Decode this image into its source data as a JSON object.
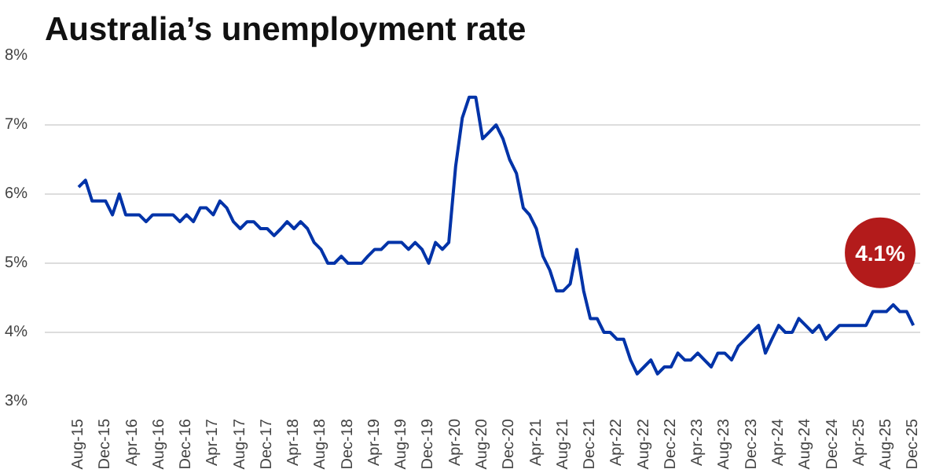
{
  "chart_data": {
    "type": "line",
    "title": "Australia’s unemployment rate",
    "x": [
      "2015-08",
      "2015-09",
      "2015-10",
      "2015-11",
      "2015-12",
      "2016-01",
      "2016-02",
      "2016-03",
      "2016-04",
      "2016-05",
      "2016-06",
      "2016-07",
      "2016-08",
      "2016-09",
      "2016-10",
      "2016-11",
      "2016-12",
      "2017-01",
      "2017-02",
      "2017-03",
      "2017-04",
      "2017-05",
      "2017-06",
      "2017-07",
      "2017-08",
      "2017-09",
      "2017-10",
      "2017-11",
      "2017-12",
      "2018-01",
      "2018-02",
      "2018-03",
      "2018-04",
      "2018-05",
      "2018-06",
      "2018-07",
      "2018-08",
      "2018-09",
      "2018-10",
      "2018-11",
      "2018-12",
      "2019-01",
      "2019-02",
      "2019-03",
      "2019-04",
      "2019-05",
      "2019-06",
      "2019-07",
      "2019-08",
      "2019-09",
      "2019-10",
      "2019-11",
      "2019-12",
      "2020-01",
      "2020-02",
      "2020-03",
      "2020-04",
      "2020-05",
      "2020-06",
      "2020-07",
      "2020-08",
      "2020-09",
      "2020-10",
      "2020-11",
      "2020-12",
      "2021-01",
      "2021-02",
      "2021-03",
      "2021-04",
      "2021-05",
      "2021-06",
      "2021-07",
      "2021-08",
      "2021-09",
      "2021-10",
      "2021-11",
      "2021-12",
      "2022-01",
      "2022-02",
      "2022-03",
      "2022-04",
      "2022-05",
      "2022-06",
      "2022-07",
      "2022-08",
      "2022-09",
      "2022-10",
      "2022-11",
      "2022-12",
      "2023-01",
      "2023-02",
      "2023-03",
      "2023-04",
      "2023-05",
      "2023-06",
      "2023-07",
      "2023-08",
      "2023-09",
      "2023-10",
      "2023-11",
      "2023-12",
      "2024-01",
      "2024-02",
      "2024-03",
      "2024-04",
      "2024-05",
      "2024-06",
      "2024-07",
      "2024-08",
      "2024-09",
      "2024-10",
      "2024-11",
      "2024-12",
      "2025-01",
      "2025-02",
      "2025-03",
      "2025-04",
      "2025-05",
      "2025-06",
      "2025-07",
      "2025-08",
      "2025-09",
      "2025-10",
      "2025-11",
      "2025-12"
    ],
    "series": [
      {
        "color": "#0033a8",
        "values": [
          6.1,
          6.2,
          5.9,
          5.9,
          5.9,
          5.7,
          6.0,
          5.7,
          5.7,
          5.7,
          5.6,
          5.7,
          5.7,
          5.7,
          5.7,
          5.6,
          5.7,
          5.6,
          5.8,
          5.8,
          5.7,
          5.9,
          5.8,
          5.6,
          5.5,
          5.6,
          5.6,
          5.5,
          5.5,
          5.4,
          5.5,
          5.6,
          5.5,
          5.6,
          5.5,
          5.3,
          5.2,
          5.0,
          5.0,
          5.1,
          5.0,
          5.0,
          5.0,
          5.1,
          5.2,
          5.2,
          5.3,
          5.3,
          5.3,
          5.2,
          5.3,
          5.2,
          5.0,
          5.3,
          5.2,
          5.3,
          6.4,
          7.1,
          7.4,
          7.4,
          6.8,
          6.9,
          7.0,
          6.8,
          6.5,
          6.3,
          5.8,
          5.7,
          5.5,
          5.1,
          4.9,
          4.6,
          4.6,
          4.7,
          5.2,
          4.6,
          4.2,
          4.2,
          4.0,
          4.0,
          3.9,
          3.9,
          3.6,
          3.4,
          3.5,
          3.6,
          3.4,
          3.5,
          3.5,
          3.7,
          3.6,
          3.6,
          3.7,
          3.6,
          3.5,
          3.7,
          3.7,
          3.6,
          3.8,
          3.9,
          4.0,
          4.1,
          3.7,
          3.9,
          4.1,
          4.0,
          4.0,
          4.2,
          4.1,
          4.0,
          4.1,
          3.9,
          4.0,
          4.1,
          4.1,
          4.1,
          4.1,
          4.1,
          4.3,
          4.3,
          4.3,
          4.4,
          4.3,
          4.3,
          4.1
        ]
      }
    ],
    "xlim": [
      "2015-03",
      "2026-01"
    ],
    "xticks": [
      {
        "value": "2015-08",
        "label": "Aug-15"
      },
      {
        "value": "2015-12",
        "label": "Dec-15"
      },
      {
        "value": "2016-04",
        "label": "Apr-16"
      },
      {
        "value": "2016-08",
        "label": "Aug-16"
      },
      {
        "value": "2016-12",
        "label": "Dec-16"
      },
      {
        "value": "2017-04",
        "label": "Apr-17"
      },
      {
        "value": "2017-08",
        "label": "Aug-17"
      },
      {
        "value": "2017-12",
        "label": "Dec-17"
      },
      {
        "value": "2018-04",
        "label": "Apr-18"
      },
      {
        "value": "2018-08",
        "label": "Aug-18"
      },
      {
        "value": "2018-12",
        "label": "Dec-18"
      },
      {
        "value": "2019-04",
        "label": "Apr-19"
      },
      {
        "value": "2019-08",
        "label": "Aug-19"
      },
      {
        "value": "2019-12",
        "label": "Dec-19"
      },
      {
        "value": "2020-04",
        "label": "Apr-20"
      },
      {
        "value": "2020-08",
        "label": "Aug-20"
      },
      {
        "value": "2020-12",
        "label": "Dec-20"
      },
      {
        "value": "2021-04",
        "label": "Apr-21"
      },
      {
        "value": "2021-08",
        "label": "Aug-21"
      },
      {
        "value": "2021-12",
        "label": "Dec-21"
      },
      {
        "value": "2022-04",
        "label": "Apr-22"
      },
      {
        "value": "2022-08",
        "label": "Aug-22"
      },
      {
        "value": "2022-12",
        "label": "Dec-22"
      },
      {
        "value": "2023-04",
        "label": "Apr-23"
      },
      {
        "value": "2023-08",
        "label": "Aug-23"
      },
      {
        "value": "2023-12",
        "label": "Dec-23"
      },
      {
        "value": "2024-04",
        "label": "Apr-24"
      },
      {
        "value": "2024-08",
        "label": "Aug-24"
      },
      {
        "value": "2024-12",
        "label": "Dec-24"
      },
      {
        "value": "2025-04",
        "label": "Apr-25"
      },
      {
        "value": "2025-08",
        "label": "Aug-25"
      },
      {
        "value": "2025-12",
        "label": "Dec-25"
      }
    ],
    "ylim": [
      3,
      8
    ],
    "yticks": [
      {
        "value": 3,
        "label": "3%"
      },
      {
        "value": 4,
        "label": "4%"
      },
      {
        "value": 5,
        "label": "5%"
      },
      {
        "value": 6,
        "label": "6%"
      },
      {
        "value": 7,
        "label": "7%"
      },
      {
        "value": 8,
        "label": "8%"
      }
    ],
    "grid": "y",
    "marker": "none",
    "line_style": "solid",
    "annotations": [
      {
        "text": "4.1%",
        "x": "2025-12",
        "y": 4.1
      }
    ]
  }
}
